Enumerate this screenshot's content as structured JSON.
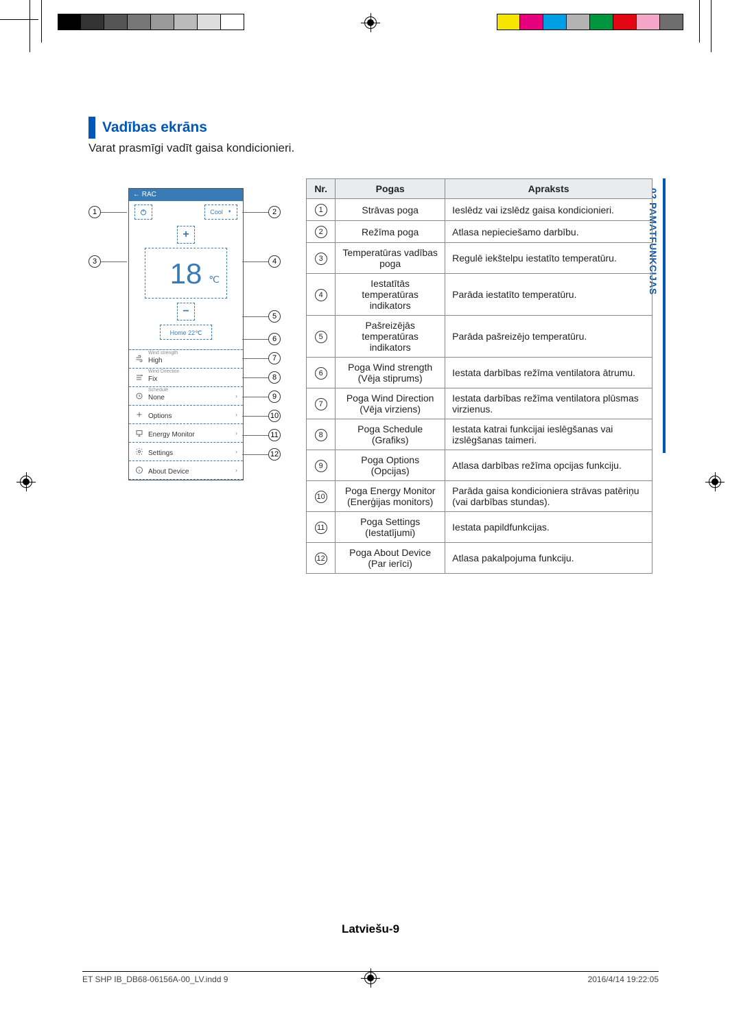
{
  "heading": "Vadības ekrāns",
  "intro": "Varat prasmīgi vadīt gaisa kondicionieri.",
  "side_tab": "02  PAMATFUNKCIJAS",
  "device": {
    "status_bar": "←   RAC",
    "mode_label": "Cool",
    "temp_value": "18",
    "temp_unit": "℃",
    "home_temp": "Home 22℃",
    "menu": [
      {
        "sup": "Wind strength",
        "main": "High",
        "icon": "wind-icon",
        "chev": false
      },
      {
        "sup": "Wind Direction",
        "main": "Fix",
        "icon": "direction-icon",
        "chev": false
      },
      {
        "sup": "Schedule",
        "main": "None",
        "icon": "clock-icon",
        "chev": true
      },
      {
        "sup": "",
        "main": "Options",
        "icon": "plus-icon",
        "chev": true
      },
      {
        "sup": "",
        "main": "Energy Monitor",
        "icon": "monitor-icon",
        "chev": true
      },
      {
        "sup": "",
        "main": "Settings",
        "icon": "gear-icon",
        "chev": true
      },
      {
        "sup": "",
        "main": "About Device",
        "icon": "info-icon",
        "chev": true
      }
    ]
  },
  "callout_numbers": [
    1,
    2,
    3,
    4,
    5,
    6,
    7,
    8,
    9,
    10,
    11,
    12
  ],
  "table": {
    "head": [
      "Nr.",
      "Pogas",
      "Apraksts"
    ],
    "rows": [
      {
        "n": 1,
        "btn": "Strāvas poga",
        "desc": "Ieslēdz vai izslēdz gaisa kondicionieri."
      },
      {
        "n": 2,
        "btn": "Režīma poga",
        "desc": "Atlasa nepieciešamo darbību."
      },
      {
        "n": 3,
        "btn": "Temperatūras vadības poga",
        "desc": "Regulē iekštelpu iestatīto temperatūru."
      },
      {
        "n": 4,
        "btn": "Iestatītās temperatūras indikators",
        "desc": "Parāda iestatīto temperatūru."
      },
      {
        "n": 5,
        "btn": "Pašreizējās temperatūras indikators",
        "desc": "Parāda pašreizējo temperatūru."
      },
      {
        "n": 6,
        "btn": "Poga Wind strength (Vēja stiprums)",
        "desc": "Iestata darbības režīma ventilatora ātrumu."
      },
      {
        "n": 7,
        "btn": "Poga Wind Direction (Vēja virziens)",
        "desc": "Iestata darbības režīma ventilatora plūsmas virzienus."
      },
      {
        "n": 8,
        "btn": "Poga Schedule (Grafiks)",
        "desc": "Iestata katrai funkcijai ieslēgšanas vai izslēgšanas taimeri."
      },
      {
        "n": 9,
        "btn": "Poga Options (Opcijas)",
        "desc": "Atlasa darbības režīma opcijas funkciju."
      },
      {
        "n": 10,
        "btn": "Poga Energy Monitor (Enerģijas monitors)",
        "desc": "Parāda gaisa kondicioniera strāvas patēriņu (vai darbības stundas)."
      },
      {
        "n": 11,
        "btn": "Poga Settings (Iestatījumi)",
        "desc": "Iestata papildfunkcijas."
      },
      {
        "n": 12,
        "btn": "Poga About Device (Par ierīci)",
        "desc": "Atlasa pakalpojuma funkciju."
      }
    ]
  },
  "page_number": "Latviešu-9",
  "meta_left": "ET SHP IB_DB68-06156A-00_LV.indd   9",
  "meta_right": "2016/4/14   19:22:05",
  "colorbar_left": [
    "#000000",
    "#333333",
    "#555555",
    "#777777",
    "#999999",
    "#bbbbbb",
    "#dddddd",
    "#ffffff"
  ],
  "colorbar_right": [
    "#f6e500",
    "#e6007e",
    "#009ee3",
    "#b3b3b3",
    "#009640",
    "#e30613",
    "#f4a6c9",
    "#6e6e6e"
  ]
}
